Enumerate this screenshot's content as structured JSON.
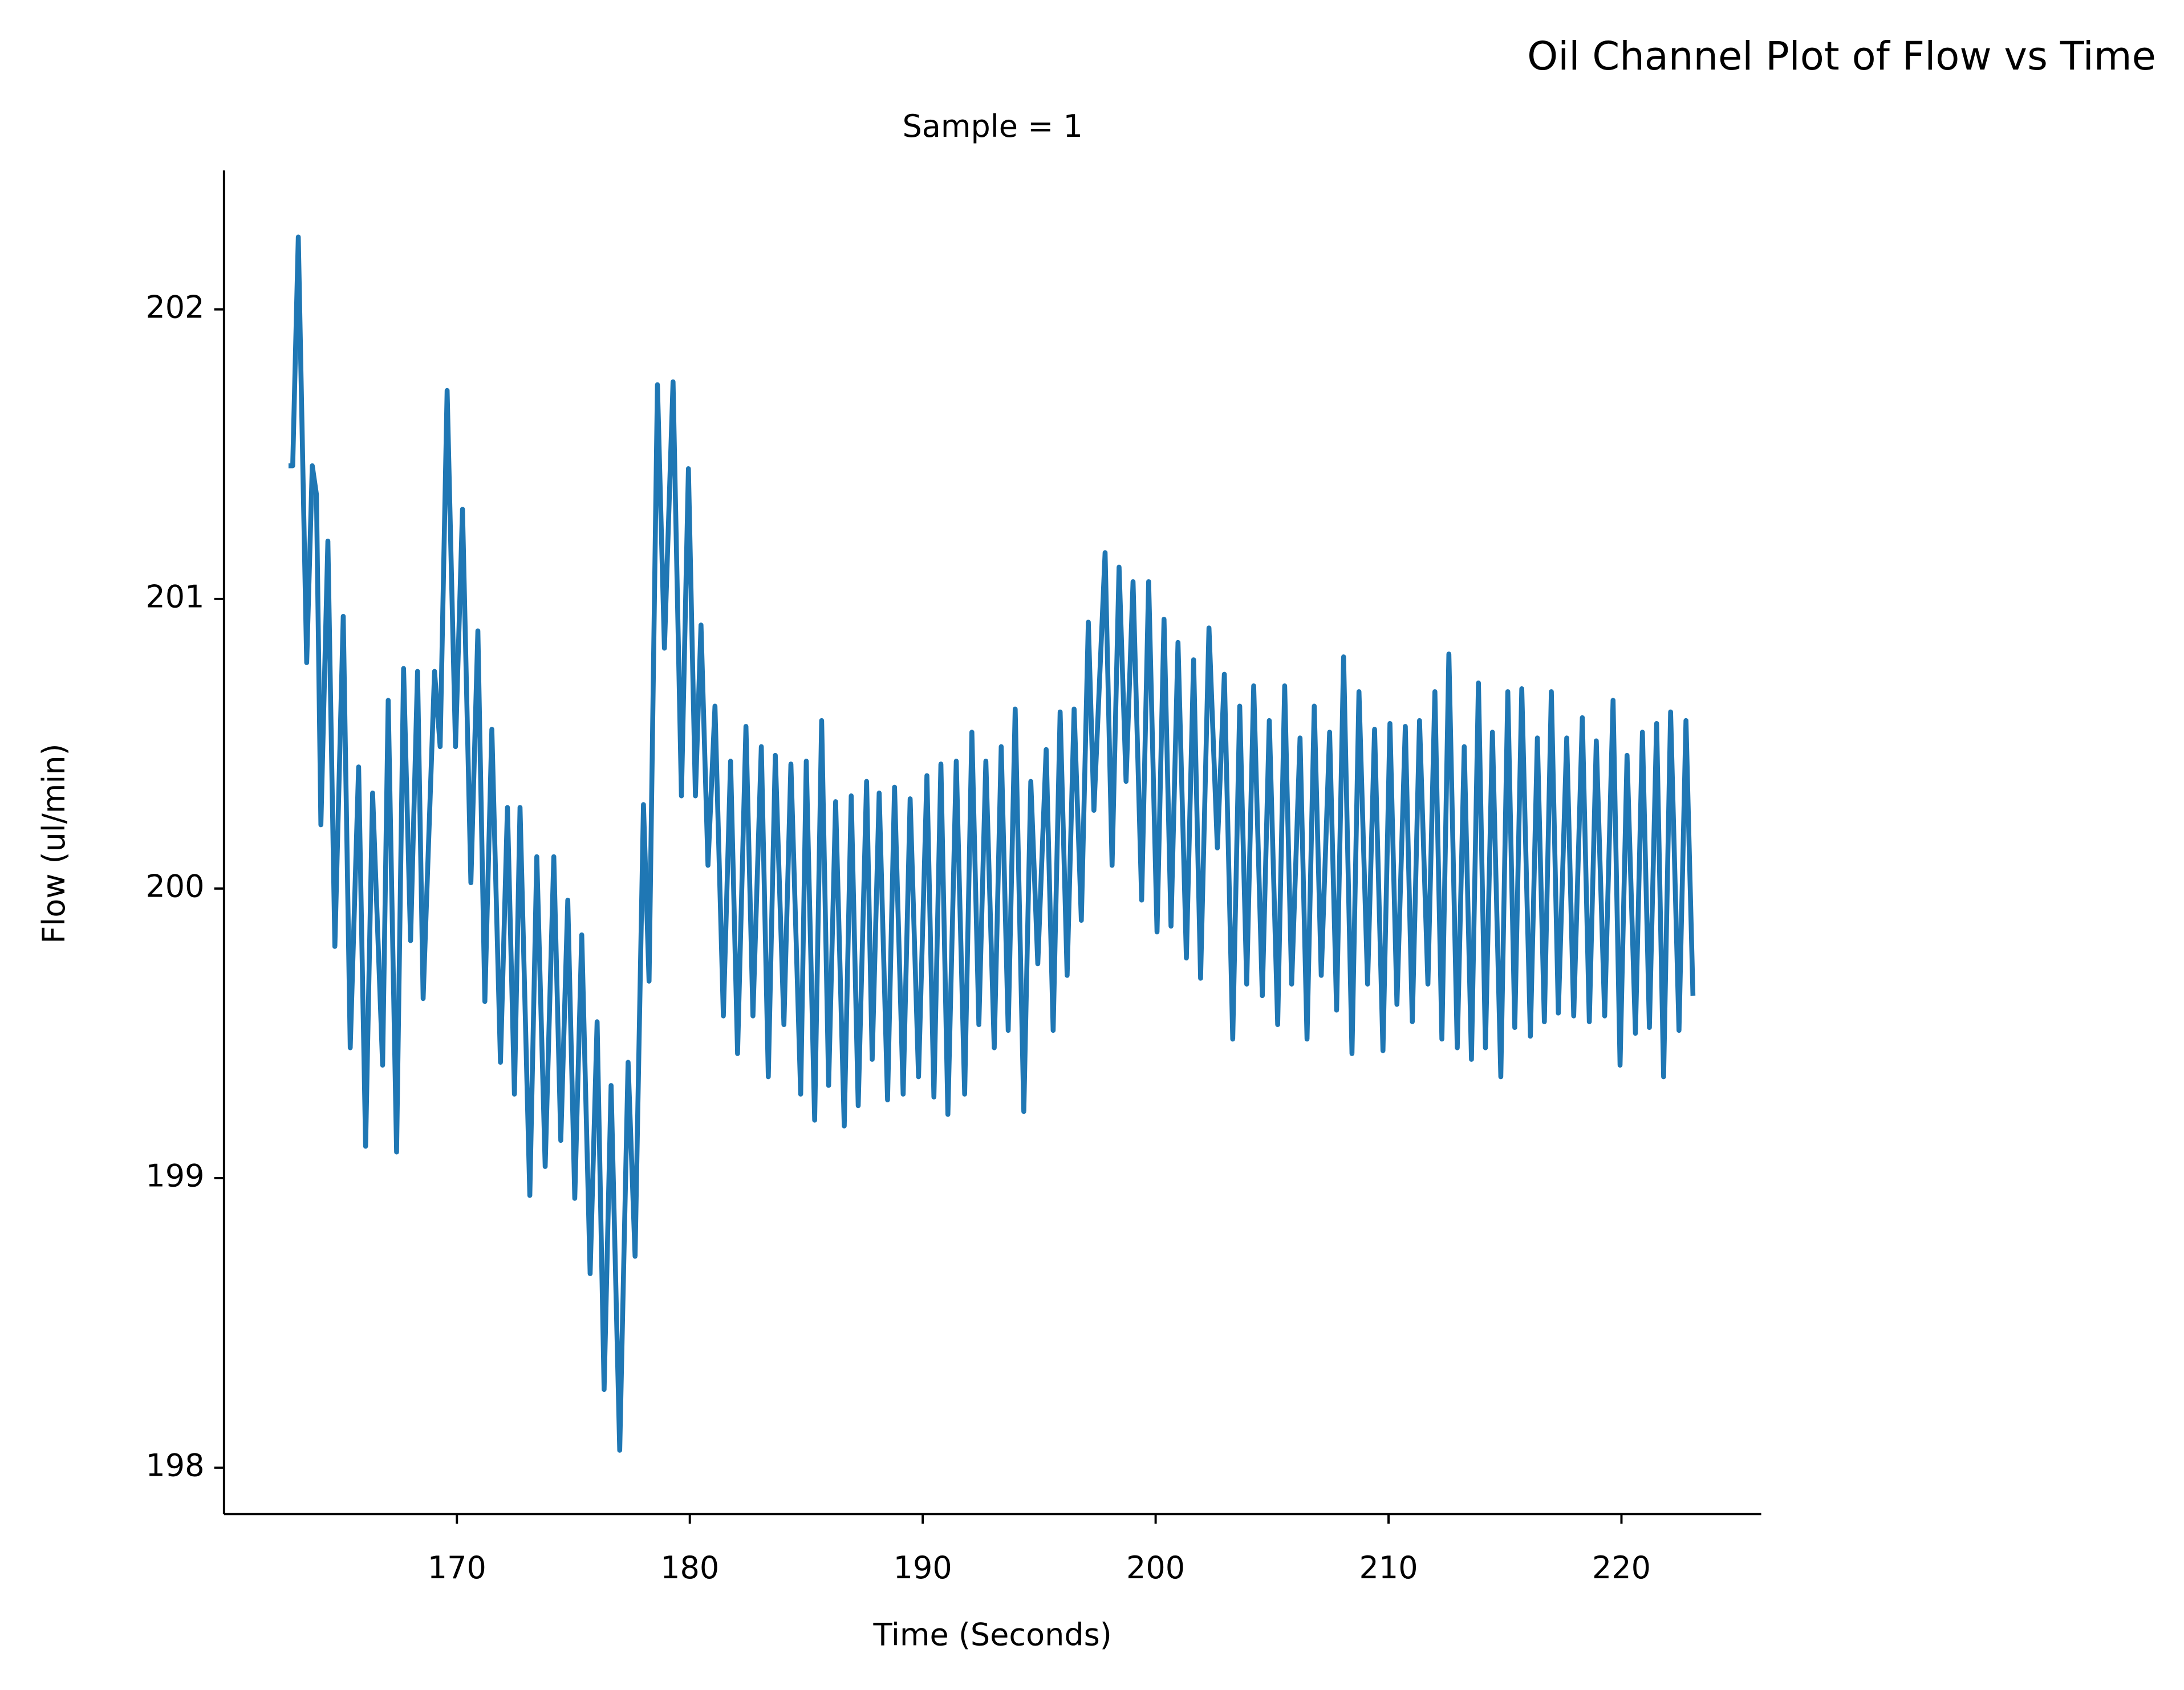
{
  "chart_data": {
    "type": "line",
    "title": "Oil Channel Plot of Flow vs Time",
    "subtitle": "Sample = 1",
    "x_label": "Time (Seconds)",
    "y_label": "Flow (ul/min)",
    "color": "#1f77b4",
    "xlim": [
      160,
      226
    ],
    "xticks": [
      170,
      180,
      190,
      200,
      210,
      220
    ],
    "ylim": [
      197.84,
      202.48
    ],
    "yticks": [
      198,
      199,
      200,
      201,
      202
    ],
    "grid": false,
    "x": [
      162.77,
      162.95,
      163.19,
      163.55,
      163.79,
      163.97,
      164.16,
      164.46,
      164.76,
      165.12,
      165.42,
      165.78,
      166.08,
      166.38,
      166.81,
      167.05,
      167.41,
      167.71,
      168.01,
      168.31,
      168.55,
      169.04,
      169.28,
      169.58,
      169.94,
      170.24,
      170.6,
      170.9,
      171.2,
      171.5,
      171.87,
      172.17,
      172.47,
      172.71,
      173.13,
      173.43,
      173.79,
      174.16,
      174.46,
      174.76,
      175.06,
      175.36,
      175.72,
      176.02,
      176.32,
      176.62,
      176.99,
      177.35,
      177.65,
      178.01,
      178.25,
      178.61,
      178.91,
      179.28,
      179.64,
      179.94,
      180.24,
      180.48,
      180.78,
      181.08,
      181.44,
      181.75,
      182.05,
      182.41,
      182.71,
      183.07,
      183.37,
      183.67,
      184.04,
      184.34,
      184.76,
      185.0,
      185.36,
      185.66,
      185.96,
      186.26,
      186.63,
      186.93,
      187.23,
      187.59,
      187.83,
      188.13,
      188.49,
      188.79,
      189.16,
      189.46,
      189.82,
      190.18,
      190.48,
      190.78,
      191.08,
      191.44,
      191.8,
      192.11,
      192.41,
      192.71,
      193.07,
      193.37,
      193.67,
      193.97,
      194.34,
      194.64,
      194.94,
      195.3,
      195.6,
      195.9,
      196.2,
      196.5,
      196.81,
      197.11,
      197.35,
      197.83,
      198.13,
      198.43,
      198.73,
      199.03,
      199.4,
      199.7,
      200.06,
      200.36,
      200.66,
      200.96,
      201.32,
      201.63,
      201.93,
      202.29,
      202.65,
      202.95,
      203.31,
      203.61,
      203.91,
      204.21,
      204.58,
      204.88,
      205.24,
      205.54,
      205.84,
      206.2,
      206.5,
      206.81,
      207.11,
      207.47,
      207.77,
      208.07,
      208.43,
      208.73,
      209.1,
      209.4,
      209.76,
      210.06,
      210.36,
      210.72,
      211.02,
      211.33,
      211.69,
      211.99,
      212.29,
      212.59,
      212.95,
      213.25,
      213.56,
      213.86,
      214.16,
      214.46,
      214.82,
      215.12,
      215.42,
      215.72,
      216.09,
      216.39,
      216.69,
      216.99,
      217.29,
      217.65,
      217.95,
      218.32,
      218.62,
      218.92,
      219.28,
      219.64,
      219.94,
      220.24,
      220.6,
      220.9,
      221.2,
      221.51,
      221.81,
      222.11,
      222.47,
      222.77,
      223.07
    ],
    "values": [
      201.46,
      201.46,
      202.25,
      200.78,
      201.46,
      201.36,
      200.22,
      201.2,
      199.8,
      200.94,
      199.45,
      200.42,
      199.11,
      200.33,
      199.39,
      200.65,
      199.09,
      200.76,
      199.82,
      200.75,
      199.62,
      200.75,
      200.49,
      201.72,
      200.49,
      201.31,
      200.02,
      200.89,
      199.61,
      200.55,
      199.4,
      200.28,
      199.29,
      200.28,
      198.94,
      200.11,
      199.04,
      200.11,
      199.13,
      199.96,
      198.93,
      199.84,
      198.67,
      199.54,
      198.27,
      199.32,
      198.06,
      199.4,
      198.73,
      200.29,
      199.68,
      201.74,
      200.83,
      201.75,
      200.32,
      201.45,
      200.32,
      200.91,
      200.08,
      200.63,
      199.56,
      200.44,
      199.43,
      200.56,
      199.56,
      200.49,
      199.35,
      200.46,
      199.53,
      200.43,
      199.29,
      200.44,
      199.2,
      200.58,
      199.32,
      200.3,
      199.18,
      200.32,
      199.25,
      200.37,
      199.41,
      200.33,
      199.27,
      200.35,
      199.29,
      200.31,
      199.35,
      200.39,
      199.28,
      200.43,
      199.22,
      200.44,
      199.29,
      200.54,
      199.53,
      200.44,
      199.45,
      200.49,
      199.51,
      200.62,
      199.23,
      200.37,
      199.74,
      200.48,
      199.51,
      200.61,
      199.7,
      200.62,
      199.89,
      200.92,
      200.27,
      201.16,
      200.08,
      201.11,
      200.37,
      201.06,
      199.96,
      201.06,
      199.85,
      200.93,
      199.87,
      200.85,
      199.76,
      200.79,
      199.69,
      200.9,
      200.14,
      200.74,
      199.48,
      200.63,
      199.67,
      200.7,
      199.63,
      200.58,
      199.53,
      200.7,
      199.67,
      200.52,
      199.48,
      200.63,
      199.7,
      200.54,
      199.58,
      200.8,
      199.43,
      200.68,
      199.67,
      200.55,
      199.44,
      200.57,
      199.6,
      200.56,
      199.54,
      200.58,
      199.67,
      200.68,
      199.48,
      200.81,
      199.45,
      200.49,
      199.41,
      200.71,
      199.45,
      200.54,
      199.35,
      200.68,
      199.52,
      200.69,
      199.49,
      200.52,
      199.54,
      200.68,
      199.57,
      200.52,
      199.56,
      200.59,
      199.54,
      200.51,
      199.56,
      200.65,
      199.39,
      200.46,
      199.5,
      200.54,
      199.52,
      200.57,
      199.35,
      200.61,
      199.51,
      200.58,
      199.63
    ]
  }
}
